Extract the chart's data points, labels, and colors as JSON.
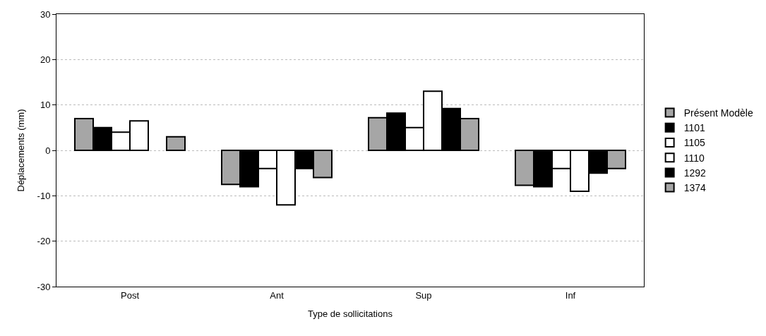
{
  "chart_data": {
    "type": "bar",
    "xlabel": "Type de sollicitations",
    "ylabel": "Déplacements (mm)",
    "categories": [
      "Post",
      "Ant",
      "Sup",
      "Inf"
    ],
    "series": [
      {
        "name": "Présent Modèle",
        "color": "#a6a6a6",
        "values": [
          7,
          -7.5,
          7.2,
          -7.7
        ]
      },
      {
        "name": "1101",
        "color": "#000000",
        "values": [
          5,
          -8,
          8.2,
          -8
        ]
      },
      {
        "name": "1105",
        "color": "#ffffff",
        "values": [
          4,
          -4,
          5,
          -4
        ]
      },
      {
        "name": "1110",
        "color": "#ffffff",
        "values": [
          6.5,
          -12,
          13,
          -9
        ]
      },
      {
        "name": "1292",
        "color": "#000000",
        "values": [
          null,
          -4,
          9.2,
          -5
        ]
      },
      {
        "name": "1374",
        "color": "#a6a6a6",
        "values": [
          3,
          -6,
          7,
          -4
        ]
      }
    ],
    "ylim": [
      -30,
      30
    ],
    "yticks": [
      -30,
      -20,
      -10,
      0,
      10,
      20,
      30
    ],
    "grid": "y",
    "legend": "right"
  }
}
